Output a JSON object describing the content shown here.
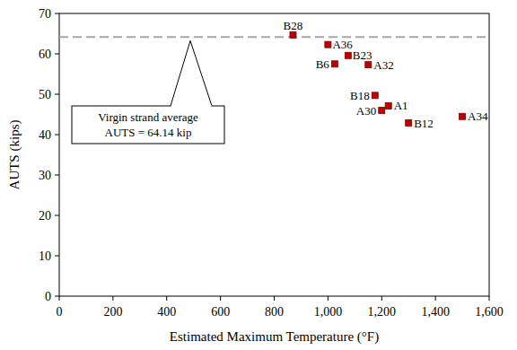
{
  "chart_data": {
    "type": "scatter",
    "x_label": "Estimated Maximum Temperature (°F)",
    "y_label": "AUTS (kips)",
    "xlim": [
      0,
      1600
    ],
    "ylim": [
      0,
      70
    ],
    "xticks": [
      0,
      200,
      400,
      600,
      800,
      {
        "value": 1000,
        "label": "1,000"
      },
      {
        "value": 1200,
        "label": "1,200"
      },
      {
        "value": 1400,
        "label": "1,400"
      },
      {
        "value": 1600,
        "label": "1,600"
      }
    ],
    "yticks": [
      0,
      10,
      20,
      30,
      40,
      50,
      60,
      70
    ],
    "grid": false,
    "series": [
      {
        "color": "#c00000",
        "marker": "square",
        "labels": [
          "B28",
          "A36",
          "B23",
          "B6",
          "A32",
          "B18",
          "A30",
          "A1",
          "B12",
          "A34"
        ],
        "x": [
          870,
          1000,
          1075,
          1025,
          1150,
          1175,
          1200,
          1225,
          1300,
          1500
        ],
        "values": [
          64.7,
          62.3,
          59.6,
          57.5,
          57.3,
          49.7,
          46.0,
          47.1,
          42.9,
          44.5
        ]
      }
    ],
    "reference_line": {
      "value": 64.14,
      "color": "#a6a6a6",
      "line_style": "dashed",
      "label_lines": [
        "Virgin strand average",
        "AUTS = 64.14 kip"
      ]
    }
  }
}
